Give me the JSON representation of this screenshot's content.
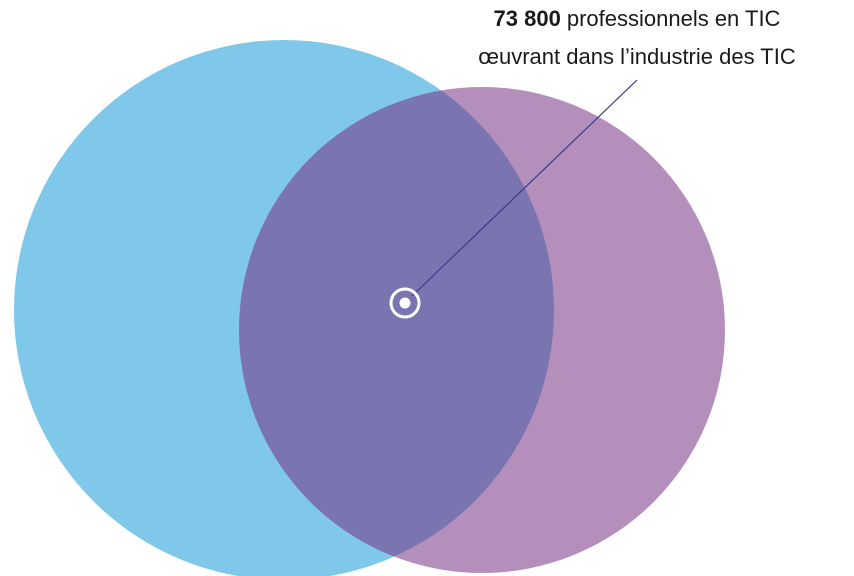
{
  "annotation": {
    "value": "73 800",
    "text_line1": "professionnels en TIC",
    "text_line2": "œuvrant dans l’industrie des TIC"
  }
}
